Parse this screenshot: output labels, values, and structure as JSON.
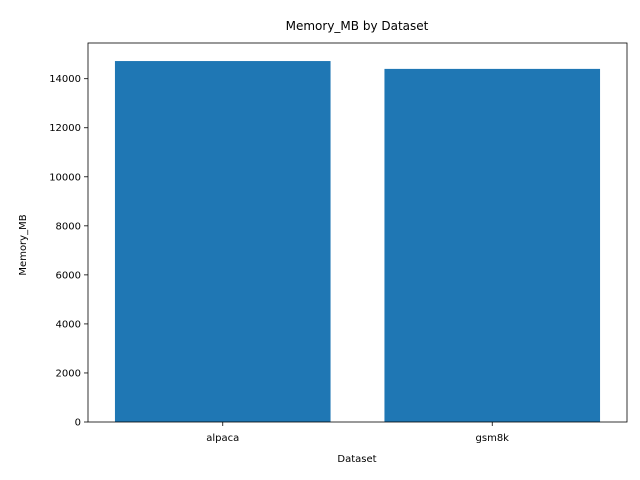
{
  "chart_data": {
    "type": "bar",
    "title": "Memory_MB by Dataset",
    "xlabel": "Dataset",
    "ylabel": "Memory_MB",
    "categories": [
      "alpaca",
      "gsm8k"
    ],
    "values": [
      14720,
      14400
    ],
    "ylim": [
      0,
      15456
    ],
    "yticks": [
      0,
      2000,
      4000,
      6000,
      8000,
      10000,
      12000,
      14000
    ],
    "bar_color": "#1f77b4",
    "grid": false,
    "legend": "none"
  }
}
